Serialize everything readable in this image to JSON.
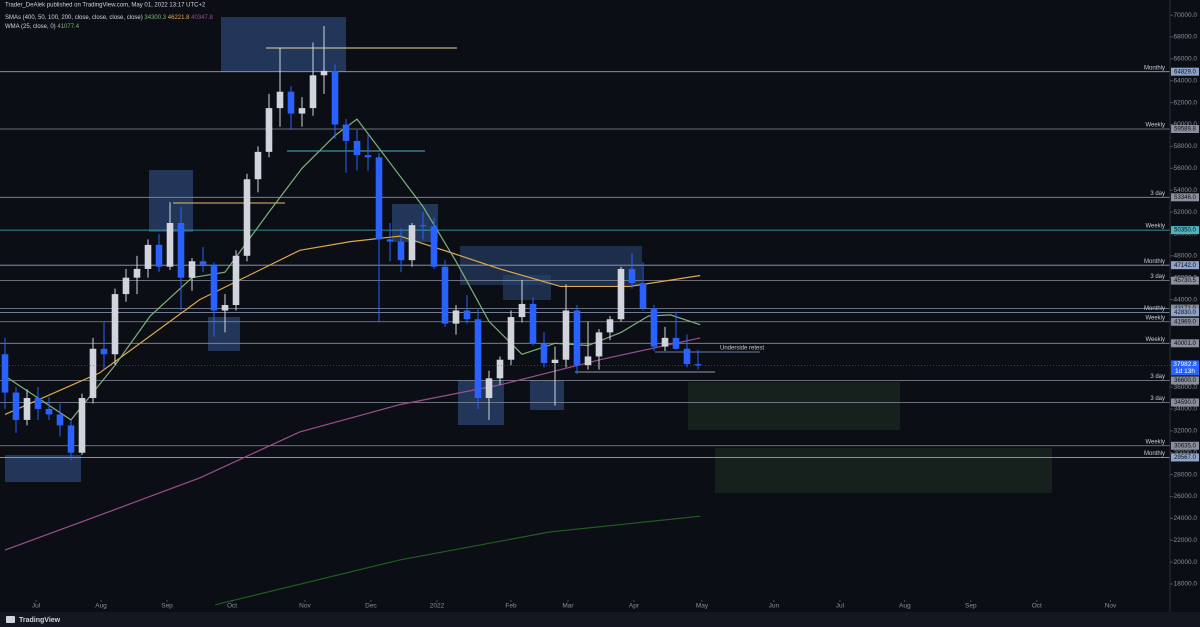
{
  "header": {
    "publisher": "Trader_DeAlek published on TradingView.com, May 01, 2022 13:17 UTC+2",
    "sma_name": "SMAs (400, 50, 100, 200, close, close, close, close)",
    "sma_values": [
      "34300.3",
      "46221.8",
      "40347.8"
    ],
    "wma_name": "WMA (25, close, 0)",
    "wma_value": "41077.4"
  },
  "footer": {
    "brand": "TradingView"
  },
  "chart_data": {
    "type": "candlestick",
    "candles": [
      [
        39000,
        40500,
        34000,
        35500
      ],
      [
        35500,
        36000,
        31800,
        33000
      ],
      [
        33000,
        35800,
        32500,
        35000
      ],
      [
        35000,
        36000,
        33000,
        34000
      ],
      [
        34000,
        35100,
        33000,
        33500
      ],
      [
        33500,
        34500,
        31500,
        32500
      ],
      [
        32500,
        33000,
        29300,
        30000
      ],
      [
        30000,
        35400,
        29800,
        35000
      ],
      [
        35000,
        40500,
        34500,
        39500
      ],
      [
        39500,
        42000,
        37600,
        39000
      ],
      [
        39000,
        45000,
        38000,
        44500
      ],
      [
        44500,
        46800,
        43800,
        46000
      ],
      [
        46000,
        48000,
        44500,
        46800
      ],
      [
        46800,
        49500,
        46000,
        49000
      ],
      [
        49000,
        50000,
        46500,
        47000
      ],
      [
        47000,
        52900,
        46700,
        51000
      ],
      [
        51000,
        52500,
        43000,
        46000
      ],
      [
        46000,
        47800,
        44800,
        47500
      ],
      [
        47500,
        48800,
        46500,
        47200
      ],
      [
        47200,
        47400,
        40600,
        43000
      ],
      [
        43000,
        44500,
        41000,
        43500
      ],
      [
        43500,
        48500,
        43000,
        48000
      ],
      [
        48000,
        55500,
        47500,
        55000
      ],
      [
        55000,
        58000,
        53800,
        57500
      ],
      [
        57500,
        62800,
        57000,
        61500
      ],
      [
        61500,
        67000,
        59800,
        63000
      ],
      [
        63000,
        63500,
        59500,
        61000
      ],
      [
        61000,
        62500,
        59800,
        61500
      ],
      [
        61500,
        67500,
        60800,
        64500
      ],
      [
        64500,
        69000,
        62800,
        64900
      ],
      [
        64900,
        65500,
        58700,
        60000
      ],
      [
        60000,
        60500,
        55600,
        58500
      ],
      [
        58500,
        59500,
        55800,
        57200
      ],
      [
        57200,
        59100,
        55800,
        57000
      ],
      [
        57000,
        57400,
        42000,
        49500
      ],
      [
        49500,
        51000,
        47500,
        49300
      ],
      [
        49300,
        50500,
        46500,
        47600
      ],
      [
        47600,
        51000,
        47000,
        50800
      ],
      [
        50800,
        52000,
        49500,
        50700
      ],
      [
        50700,
        51500,
        46800,
        47000
      ],
      [
        47000,
        47600,
        41500,
        41800
      ],
      [
        41800,
        43500,
        40800,
        43000
      ],
      [
        43000,
        44400,
        41800,
        42200
      ],
      [
        42200,
        43200,
        34000,
        35000
      ],
      [
        35000,
        37500,
        33000,
        36800
      ],
      [
        36800,
        38800,
        36200,
        38500
      ],
      [
        38500,
        43000,
        38000,
        42400
      ],
      [
        42400,
        45800,
        41900,
        43600
      ],
      [
        43600,
        44200,
        39800,
        40000
      ],
      [
        40000,
        41000,
        37800,
        38200
      ],
      [
        38200,
        39700,
        34300,
        38500
      ],
      [
        38500,
        45400,
        37800,
        43000
      ],
      [
        43000,
        43500,
        37200,
        38000
      ],
      [
        38000,
        42000,
        37600,
        38800
      ],
      [
        38800,
        41300,
        37600,
        41000
      ],
      [
        41000,
        42500,
        40300,
        42200
      ],
      [
        42200,
        47000,
        42000,
        46800
      ],
      [
        46800,
        48200,
        45000,
        45500
      ],
      [
        45500,
        47400,
        43000,
        43200
      ],
      [
        43200,
        43500,
        39300,
        39700
      ],
      [
        39700,
        41500,
        39300,
        40500
      ],
      [
        40500,
        42900,
        39400,
        39500
      ],
      [
        39500,
        40800,
        37800,
        38100
      ],
      [
        38100,
        39400,
        37600,
        37982.8
      ]
    ],
    "up_color": "#d1d4dc",
    "down_color": "#2962ff",
    "xlim": [
      -0.4545,
      105.91
    ],
    "xticks": [
      {
        "value": 2.82,
        "label": "Jul"
      },
      {
        "value": 8.73,
        "label": "Aug"
      },
      {
        "value": 14.73,
        "label": "Sep"
      },
      {
        "value": 20.64,
        "label": "Oct"
      },
      {
        "value": 27.27,
        "label": "Nov"
      },
      {
        "value": 33.27,
        "label": "Dec"
      },
      {
        "value": 39.27,
        "label": "2022"
      },
      {
        "value": 46.0,
        "label": "Feb"
      },
      {
        "value": 51.18,
        "label": "Mar"
      },
      {
        "value": 57.18,
        "label": "Apr"
      },
      {
        "value": 63.36,
        "label": "May"
      },
      {
        "value": 69.9,
        "label": "Jun"
      },
      {
        "value": 75.9,
        "label": "Jul"
      },
      {
        "value": 81.8,
        "label": "Aug"
      },
      {
        "value": 87.8,
        "label": "Sep"
      },
      {
        "value": 93.8,
        "label": "Oct"
      },
      {
        "value": 100.5,
        "label": "Nov"
      }
    ],
    "ylim": [
      15624,
      71382
    ],
    "yticks": [
      {
        "value": 18000,
        "label": "18000.0"
      },
      {
        "value": 20000,
        "label": "20000.0"
      },
      {
        "value": 22000,
        "label": "22000.0"
      },
      {
        "value": 24000,
        "label": "24000.0"
      },
      {
        "value": 26000,
        "label": "26000.0"
      },
      {
        "value": 28000,
        "label": "28000.0"
      },
      {
        "value": 30000,
        "label": "30000.0"
      },
      {
        "value": 32000,
        "label": "32000.0"
      },
      {
        "value": 34000,
        "label": "34000.0"
      },
      {
        "value": 36000,
        "label": "36000.0"
      },
      {
        "value": 38000,
        "label": "38000.0"
      },
      {
        "value": 40000,
        "label": "40000.0"
      },
      {
        "value": 42000,
        "label": "42000.0"
      },
      {
        "value": 44000,
        "label": "44000.0"
      },
      {
        "value": 46000,
        "label": "46000.0"
      },
      {
        "value": 48000,
        "label": "48000.0"
      },
      {
        "value": 50000,
        "label": "50000.0"
      },
      {
        "value": 52000,
        "label": "52000.0"
      },
      {
        "value": 54000,
        "label": "54000.0"
      },
      {
        "value": 56000,
        "label": "56000.0"
      },
      {
        "value": 58000,
        "label": "58000.0"
      },
      {
        "value": 60000,
        "label": "60000.0"
      },
      {
        "value": 62000,
        "label": "62000.0"
      },
      {
        "value": 64000,
        "label": "64000.0"
      },
      {
        "value": 66000,
        "label": "66000.0"
      },
      {
        "value": 68000,
        "label": "68000.0"
      },
      {
        "value": 70000,
        "label": "70000.0"
      }
    ],
    "lines": [
      {
        "color": "#9c4f8e",
        "x": [
          0,
          8.64,
          17.7,
          26.8,
          35.9,
          45,
          54.1,
          63.2
        ],
        "values": [
          21100,
          24300,
          27700,
          31900,
          34400,
          36200,
          38500,
          40500
        ]
      },
      {
        "color": "#1f5e1f",
        "x": [
          19.1,
          35.9,
          49.5,
          63.2
        ],
        "values": [
          16100,
          20200,
          22750,
          24200
        ]
      },
      {
        "color": "#e0a84a",
        "x": [
          0,
          8.6,
          17.7,
          26.8,
          31.4,
          35.9,
          40.5,
          45,
          50.5,
          56.8,
          63.2
        ],
        "values": [
          33500,
          37300,
          44000,
          48500,
          49300,
          49800,
          48300,
          46800,
          45200,
          45200,
          46200
        ]
      },
      {
        "color": "#7fb07a",
        "x": [
          0,
          6,
          10,
          13.2,
          17,
          20,
          24,
          27,
          30,
          32,
          35,
          38,
          41,
          44,
          47,
          50,
          53,
          56,
          58.5,
          60.5,
          63.2
        ],
        "values": [
          37000,
          33000,
          38000,
          42500,
          46000,
          46500,
          52000,
          56000,
          59000,
          60500,
          56500,
          52500,
          47500,
          42000,
          39000,
          40000,
          39800,
          41000,
          42500,
          42600,
          41700
        ]
      }
    ],
    "levels": [
      {
        "value": 64829,
        "label": "64829.0",
        "tag": "Monthly",
        "color": "#8fa3c8"
      },
      {
        "value": 59589.8,
        "label": "59589.8",
        "tag": "Weekly",
        "color": "#8a8f9c"
      },
      {
        "value": 53346,
        "label": "53346.0",
        "tag": "3 day",
        "color": "#8a8f9c"
      },
      {
        "value": 50350,
        "label": "50350.0",
        "tag": "Weekly",
        "color": "#4fb3bf"
      },
      {
        "value": 47142,
        "label": "47142.0",
        "tag": "Monthly",
        "color": "#8fa3c8"
      },
      {
        "value": 45730.5,
        "label": "45730.5",
        "tag": "3 day",
        "color": "#8a8f9c"
      },
      {
        "value": 43171,
        "label": "43171.0",
        "color": "#8a8f9c"
      },
      {
        "value": 42830,
        "label": "42830.0",
        "tag": "Monthly",
        "color": "#8fa3c8"
      },
      {
        "value": 41969,
        "label": "41969.0",
        "tag": "Weekly",
        "color": "#8a8f9c"
      },
      {
        "value": 40001,
        "label": "40001.0",
        "tag": "Weekly",
        "color": "#8a8f9c"
      },
      {
        "value": 36600,
        "label": "36600.0",
        "tag": "3 day",
        "color": "#8a8f9c"
      },
      {
        "value": 34590,
        "label": "34590.0",
        "tag": "3 day",
        "color": "#8a8f9c"
      },
      {
        "value": 30635,
        "label": "30635.0",
        "tag": "Weekly",
        "color": "#8a8f9c"
      },
      {
        "value": 29567,
        "label": "29567.0",
        "tag": "Monthly",
        "color": "#8fa3c8"
      }
    ],
    "last_price": {
      "value": 37982.8,
      "label": "37982.8"
    },
    "countdown": "1d 13h",
    "annotation": "Underside retest"
  }
}
